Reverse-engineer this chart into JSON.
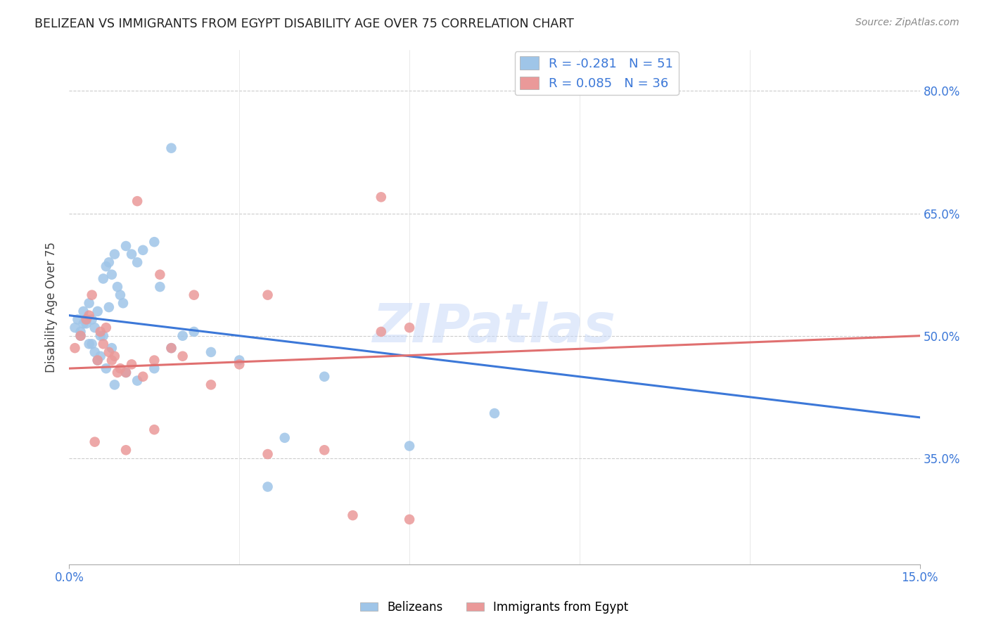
{
  "title": "BELIZEAN VS IMMIGRANTS FROM EGYPT DISABILITY AGE OVER 75 CORRELATION CHART",
  "source": "Source: ZipAtlas.com",
  "ylabel": "Disability Age Over 75",
  "legend_label1": "Belizeans",
  "legend_label2": "Immigrants from Egypt",
  "r1": -0.281,
  "n1": 51,
  "r2": 0.085,
  "n2": 36,
  "color_blue": "#9fc5e8",
  "color_pink": "#ea9999",
  "line_color_blue": "#3c78d8",
  "line_color_pink": "#e07070",
  "watermark": "ZIPatlas",
  "xlim": [
    0,
    15
  ],
  "ylim": [
    22,
    85
  ],
  "ytick_vals": [
    35,
    50,
    65,
    80
  ],
  "blue_line_y0": 52.5,
  "blue_line_y1": 40.0,
  "pink_line_y0": 46.0,
  "pink_line_y1": 50.0,
  "blue_points_x": [
    0.1,
    0.15,
    0.2,
    0.25,
    0.3,
    0.35,
    0.4,
    0.45,
    0.5,
    0.55,
    0.6,
    0.65,
    0.7,
    0.75,
    0.8,
    0.85,
    0.9,
    0.95,
    1.0,
    1.1,
    1.2,
    1.3,
    1.5,
    1.6,
    1.8,
    2.0,
    2.2,
    2.5,
    3.0,
    3.5,
    0.2,
    0.3,
    0.4,
    0.5,
    0.6,
    0.7,
    0.8,
    1.0,
    1.2,
    1.5,
    0.25,
    0.35,
    0.45,
    0.55,
    0.65,
    0.75,
    1.8,
    3.8,
    6.0,
    7.5,
    4.5
  ],
  "blue_points_y": [
    51.0,
    52.0,
    50.5,
    53.0,
    51.5,
    54.0,
    52.0,
    51.0,
    53.0,
    50.0,
    57.0,
    58.5,
    59.0,
    57.5,
    60.0,
    56.0,
    55.0,
    54.0,
    61.0,
    60.0,
    59.0,
    60.5,
    61.5,
    56.0,
    48.5,
    50.0,
    50.5,
    48.0,
    47.0,
    31.5,
    50.0,
    52.0,
    49.0,
    47.0,
    50.0,
    53.5,
    44.0,
    45.5,
    44.5,
    46.0,
    51.5,
    49.0,
    48.0,
    47.5,
    46.0,
    48.5,
    73.0,
    37.5,
    36.5,
    40.5,
    45.0
  ],
  "pink_points_x": [
    0.1,
    0.2,
    0.3,
    0.4,
    0.5,
    0.6,
    0.7,
    0.8,
    0.9,
    1.0,
    1.1,
    1.3,
    1.5,
    1.8,
    2.0,
    2.5,
    3.0,
    3.5,
    0.35,
    0.55,
    0.65,
    0.75,
    0.85,
    1.2,
    1.6,
    5.5,
    0.45,
    1.0,
    1.5,
    2.2,
    5.5,
    6.0,
    6.0,
    5.0,
    3.5,
    4.5
  ],
  "pink_points_y": [
    48.5,
    50.0,
    52.0,
    55.0,
    47.0,
    49.0,
    48.0,
    47.5,
    46.0,
    45.5,
    46.5,
    45.0,
    47.0,
    48.5,
    47.5,
    44.0,
    46.5,
    55.0,
    52.5,
    50.5,
    51.0,
    47.0,
    45.5,
    66.5,
    57.5,
    67.0,
    37.0,
    36.0,
    38.5,
    55.0,
    50.5,
    51.0,
    27.5,
    28.0,
    35.5,
    36.0
  ]
}
